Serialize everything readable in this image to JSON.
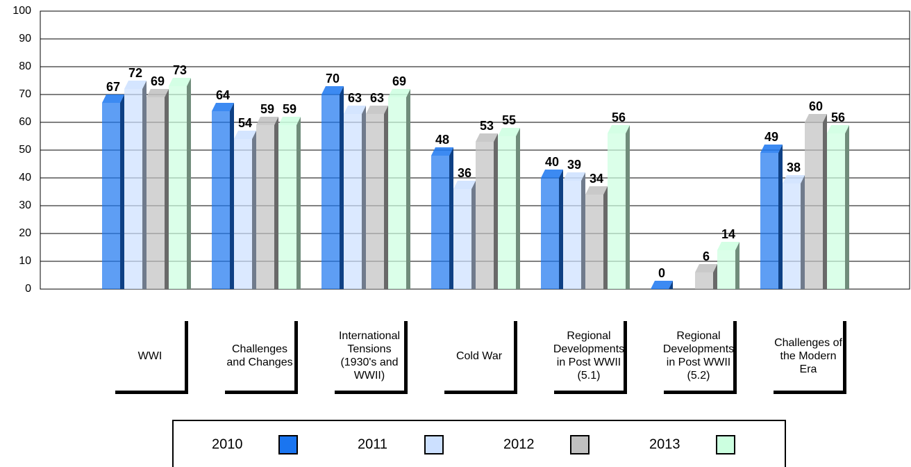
{
  "chart_data": {
    "type": "bar",
    "categories": [
      "WWI",
      "Challenges and Changes",
      "International Tensions (1930's and WWII)",
      "Cold War",
      "Regional Developments in Post WWII (5.1)",
      "Regional Developments in Post WWII (5.2)",
      "Challenges of the Modern Era"
    ],
    "series": [
      {
        "name": "2010",
        "color": "#1a75f0",
        "values": [
          67,
          64,
          70,
          48,
          40,
          0,
          49
        ]
      },
      {
        "name": "2011",
        "color": "#cce0ff",
        "values": [
          72,
          54,
          63,
          36,
          39,
          null,
          38
        ]
      },
      {
        "name": "2012",
        "color": "#c0c0c0",
        "values": [
          69,
          59,
          63,
          53,
          34,
          6,
          60
        ]
      },
      {
        "name": "2013",
        "color": "#ccffe0",
        "values": [
          73,
          59,
          69,
          55,
          56,
          14,
          56
        ]
      }
    ],
    "ylim": [
      0,
      100
    ],
    "yticks": [
      0,
      10,
      20,
      30,
      40,
      50,
      60,
      70,
      80,
      90,
      100
    ],
    "grid": true,
    "legend": "bottom"
  }
}
